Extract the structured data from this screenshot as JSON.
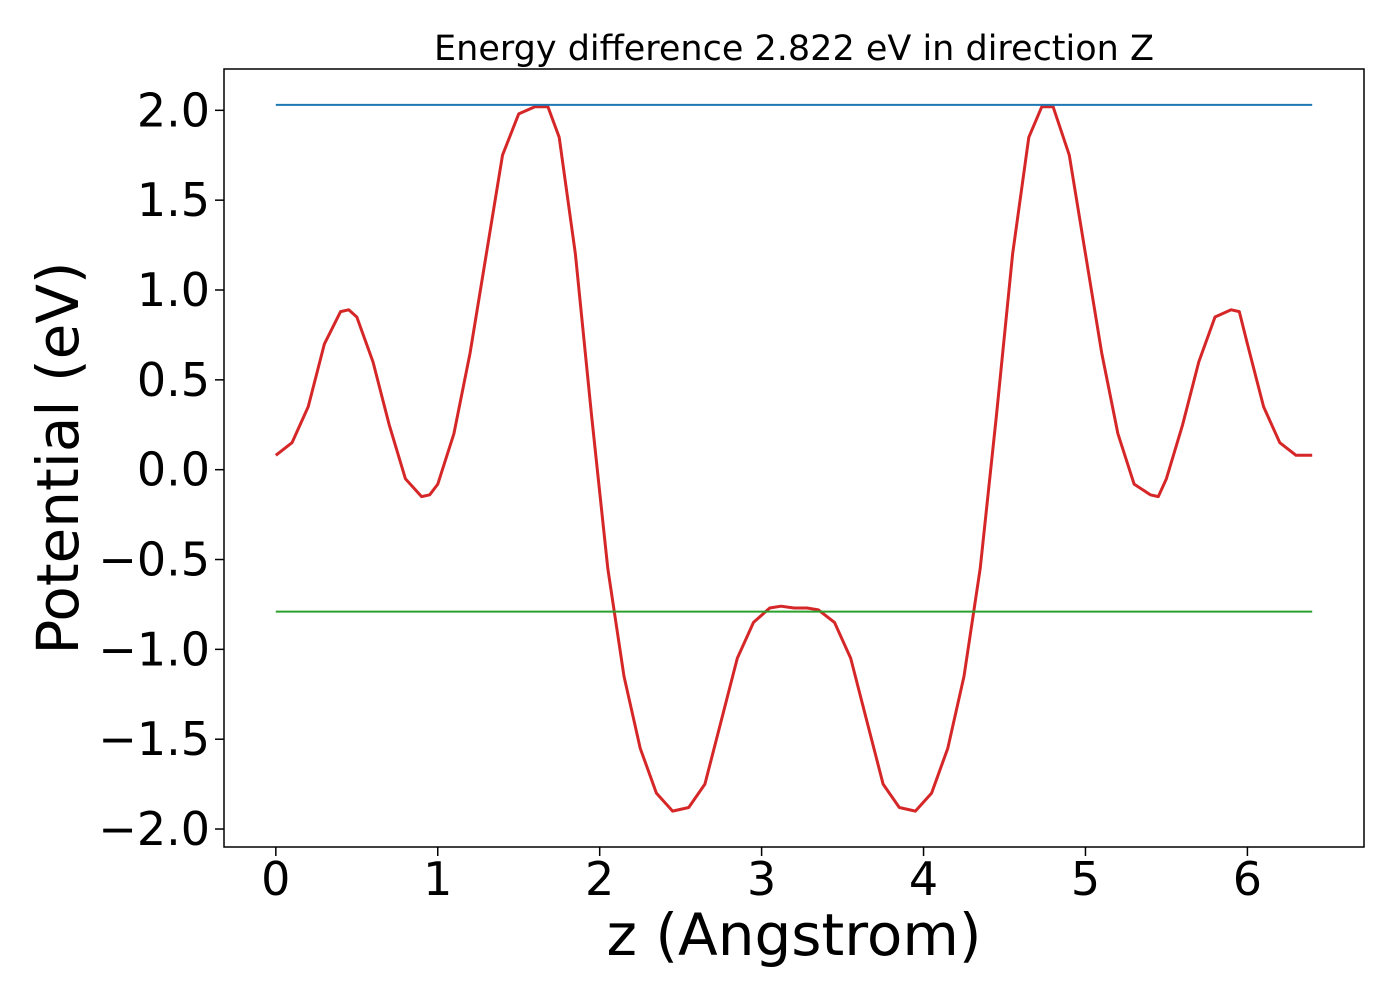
{
  "chart_data": {
    "type": "line",
    "title": "Energy difference 2.822 eV in direction Z",
    "xlabel": "z (Angstrom)",
    "ylabel": "Potential (eV)",
    "xlim": [
      -0.32,
      6.72
    ],
    "ylim": [
      -2.1,
      2.23
    ],
    "xticks": [
      0,
      1,
      2,
      3,
      4,
      5,
      6
    ],
    "xtick_labels": [
      "0",
      "1",
      "2",
      "3",
      "4",
      "5",
      "6"
    ],
    "yticks": [
      2.0,
      1.5,
      1.0,
      0.5,
      0.0,
      -0.5,
      -1.0,
      -1.5,
      -2.0
    ],
    "ytick_labels": [
      "2.0",
      "1.5",
      "1.0",
      "0.5",
      "0.0",
      "−0.5",
      "−1.0",
      "−1.5",
      "−2.0"
    ],
    "grid": false,
    "legend": "none",
    "series": [
      {
        "color": "#d62728",
        "x": [
          0,
          0.1,
          0.2,
          0.3,
          0.4,
          0.45,
          0.5,
          0.6,
          0.7,
          0.8,
          0.9,
          0.95,
          1.0,
          1.1,
          1.2,
          1.3,
          1.4,
          1.5,
          1.6,
          1.68,
          1.75,
          1.85,
          1.95,
          2.05,
          2.15,
          2.25,
          2.35,
          2.45,
          2.55,
          2.65,
          2.75,
          2.85,
          2.95,
          3.05,
          3.12,
          3.2,
          3.28,
          3.35,
          3.45,
          3.55,
          3.65,
          3.75,
          3.85,
          3.95,
          4.05,
          4.15,
          4.25,
          4.35,
          4.45,
          4.55,
          4.65,
          4.73,
          4.8,
          4.9,
          5.0,
          5.1,
          5.2,
          5.3,
          5.4,
          5.45,
          5.5,
          5.6,
          5.7,
          5.8,
          5.9,
          5.95,
          6.0,
          6.1,
          6.2,
          6.3,
          6.4
        ],
        "y": [
          0.08,
          0.15,
          0.35,
          0.7,
          0.88,
          0.89,
          0.85,
          0.6,
          0.25,
          -0.05,
          -0.15,
          -0.14,
          -0.08,
          0.2,
          0.65,
          1.2,
          1.75,
          1.98,
          2.02,
          2.02,
          1.85,
          1.2,
          0.3,
          -0.55,
          -1.15,
          -1.55,
          -1.8,
          -1.9,
          -1.88,
          -1.75,
          -1.4,
          -1.05,
          -0.85,
          -0.77,
          -0.76,
          -0.77,
          -0.77,
          -0.78,
          -0.85,
          -1.05,
          -1.4,
          -1.75,
          -1.88,
          -1.9,
          -1.8,
          -1.55,
          -1.15,
          -0.55,
          0.3,
          1.2,
          1.85,
          2.02,
          2.02,
          1.75,
          1.2,
          0.65,
          0.2,
          -0.08,
          -0.14,
          -0.15,
          -0.05,
          0.25,
          0.6,
          0.85,
          0.89,
          0.88,
          0.7,
          0.35,
          0.15,
          0.08,
          0.08
        ]
      },
      {
        "color": "#1f77b4",
        "x": [
          0,
          6.4
        ],
        "y": [
          2.03,
          2.03
        ]
      },
      {
        "color": "#2ca02c",
        "x": [
          0,
          6.4
        ],
        "y": [
          -0.79,
          -0.79
        ]
      }
    ]
  }
}
